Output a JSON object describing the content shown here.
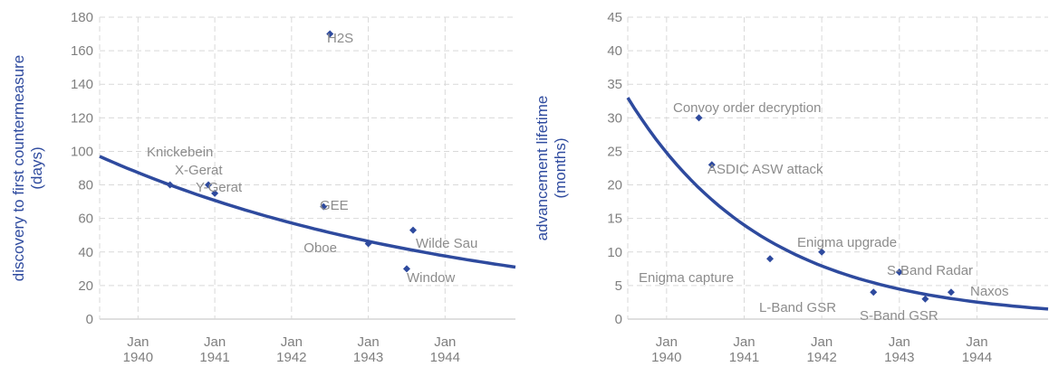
{
  "colors": {
    "series": "#2e4a9e",
    "grid": "#d9d9d9",
    "text": "#7f7f7f"
  },
  "chart_data": [
    {
      "type": "scatter",
      "ylabel": [
        "discovery to first countermeasure",
        "(days)"
      ],
      "ylim": [
        0,
        180
      ],
      "yticks": [
        0,
        20,
        40,
        60,
        80,
        100,
        120,
        140,
        160,
        180
      ],
      "xlim": [
        "1939-07",
        "1944-12"
      ],
      "xticks": [
        {
          "date": "1940-01",
          "label": [
            "Jan",
            "1940"
          ]
        },
        {
          "date": "1941-01",
          "label": [
            "Jan",
            "1941"
          ]
        },
        {
          "date": "1942-01",
          "label": [
            "Jan",
            "1942"
          ]
        },
        {
          "date": "1943-01",
          "label": [
            "Jan",
            "1943"
          ]
        },
        {
          "date": "1944-01",
          "label": [
            "Jan",
            "1944"
          ]
        }
      ],
      "grid": true,
      "points": [
        {
          "label": "Knickebein",
          "x": "1940-06",
          "y": 80
        },
        {
          "label": "X-Gerat",
          "x": "1940-12",
          "y": 80
        },
        {
          "label": "Y-Gerat",
          "x": "1941-01",
          "y": 75
        },
        {
          "label": "H2S",
          "x": "1942-07",
          "y": 170
        },
        {
          "label": "GEE",
          "x": "1942-06",
          "y": 67
        },
        {
          "label": "Oboe",
          "x": "1943-01",
          "y": 45
        },
        {
          "label": "Wilde Sau",
          "x": "1943-08",
          "y": 53
        },
        {
          "label": "Window",
          "x": "1943-07",
          "y": 30
        }
      ],
      "trendline": {
        "type": "exponential",
        "start": [
          "1939-07",
          97
        ],
        "end": [
          "1944-12",
          31
        ]
      }
    },
    {
      "type": "scatter",
      "ylabel": [
        "advancement lifetime",
        "(months)"
      ],
      "ylim": [
        0,
        45
      ],
      "yticks": [
        0,
        5,
        10,
        15,
        20,
        25,
        30,
        35,
        40,
        45
      ],
      "xlim": [
        "1939-07",
        "1944-12"
      ],
      "xticks": [
        {
          "date": "1940-01",
          "label": [
            "Jan",
            "1940"
          ]
        },
        {
          "date": "1941-01",
          "label": [
            "Jan",
            "1941"
          ]
        },
        {
          "date": "1942-01",
          "label": [
            "Jan",
            "1942"
          ]
        },
        {
          "date": "1943-01",
          "label": [
            "Jan",
            "1943"
          ]
        },
        {
          "date": "1944-01",
          "label": [
            "Jan",
            "1944"
          ]
        }
      ],
      "grid": true,
      "points": [
        {
          "label": "Convoy order decryption",
          "x": "1940-06",
          "y": 30
        },
        {
          "label": "ASDIC ASW attack",
          "x": "1940-08",
          "y": 23
        },
        {
          "label": "Enigma capture",
          "x": "1941-05",
          "y": 9
        },
        {
          "label": "Enigma upgrade",
          "x": "1942-01",
          "y": 10
        },
        {
          "label": "L-Band GSR",
          "x": "1942-09",
          "y": 4
        },
        {
          "label": "S-Band Radar",
          "x": "1943-01",
          "y": 7
        },
        {
          "label": "S-Band GSR",
          "x": "1943-05",
          "y": 3
        },
        {
          "label": "Naxos",
          "x": "1943-09",
          "y": 4
        }
      ],
      "trendline": {
        "type": "exponential",
        "start": [
          "1939-07",
          33
        ],
        "end": [
          "1944-12",
          1.5
        ]
      }
    }
  ]
}
